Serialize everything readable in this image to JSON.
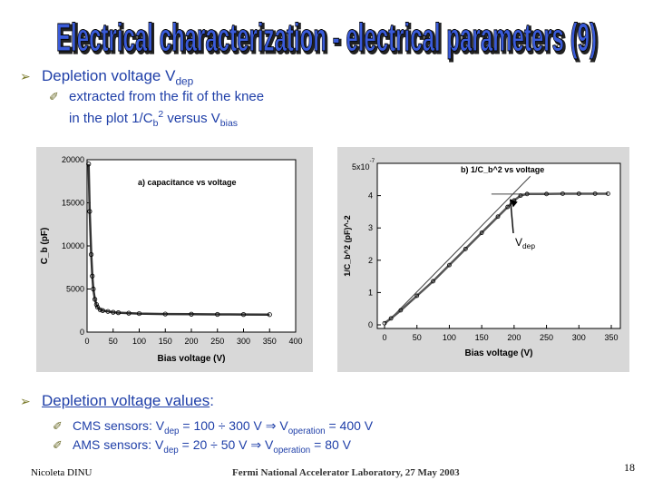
{
  "slide": {
    "title": "Electrical characterization - electrical parameters (9)",
    "bullet1": {
      "text": "Depletion voltage V",
      "sub": "dep"
    },
    "sub1": {
      "line1": "extracted from the fit of the knee",
      "line2_a": "in the plot 1/C",
      "line2_b": "b",
      "line2_c": "2",
      "line2_d": " versus V",
      "line2_e": "bias"
    },
    "bullet2": {
      "text": "Depletion voltage values",
      "colon": ":"
    },
    "cms": {
      "a": "CMS sensors: V",
      "b": "dep",
      "c": " = 100 ÷ 300 V ",
      "arrow": "⇒",
      "d": " V",
      "e": "operation",
      "f": " = 400 V"
    },
    "ams": {
      "a": "AMS sensors: V",
      "b": "dep",
      "c": " = 20 ÷ 50 V ",
      "arrow": "⇒",
      "d": " V",
      "e": "operation",
      "f": " = 80 V"
    },
    "footer": {
      "author": "Nicoleta DINU",
      "venue": "Fermi National Accelerator Laboratory, 27 May 2003",
      "page": "18"
    },
    "colors": {
      "title_fill": "#3a5bd9",
      "title_shadow": "#222222",
      "text_blue": "#1f3fa8"
    }
  },
  "chart_data": [
    {
      "type": "scatter",
      "title": "a) capacitance vs voltage",
      "xlabel": "Bias voltage (V)",
      "ylabel": "C_b (pF)",
      "xlim": [
        0,
        400
      ],
      "ylim": [
        0,
        20000
      ],
      "xticks": [
        "0",
        "50",
        "100",
        "150",
        "200",
        "250",
        "300",
        "350",
        "400"
      ],
      "yticks": [
        "0",
        "5000",
        "10000",
        "15000",
        "20000"
      ],
      "x": [
        3,
        5,
        8,
        10,
        12,
        15,
        18,
        20,
        25,
        30,
        40,
        50,
        60,
        80,
        100,
        150,
        200,
        250,
        300,
        350
      ],
      "y": [
        19500,
        14000,
        9000,
        6500,
        5000,
        3800,
        3200,
        2900,
        2600,
        2500,
        2400,
        2300,
        2250,
        2200,
        2150,
        2100,
        2080,
        2050,
        2040,
        2030
      ]
    },
    {
      "type": "scatter",
      "title": "b) 1/C_b^2 vs voltage",
      "xlabel": "Bias voltage (V)",
      "ylabel": "1/C_b^2 (pF)^-2",
      "scale_label": "5x10",
      "scale_exp": "-7",
      "annotation": "V_dep",
      "xlim": [
        0,
        350
      ],
      "ylim": [
        0,
        5
      ],
      "xticks": [
        "0",
        "50",
        "100",
        "150",
        "200",
        "250",
        "300",
        "350"
      ],
      "yticks": [
        "0",
        "1",
        "2",
        "3",
        "4"
      ],
      "x": [
        0,
        10,
        25,
        50,
        75,
        100,
        125,
        150,
        175,
        190,
        200,
        210,
        220,
        250,
        275,
        300,
        325,
        345
      ],
      "y": [
        0.05,
        0.2,
        0.45,
        0.9,
        1.35,
        1.85,
        2.35,
        2.85,
        3.35,
        3.65,
        3.85,
        4.0,
        4.05,
        4.05,
        4.06,
        4.06,
        4.06,
        4.06
      ],
      "fit_flat_y": 4.05
    }
  ]
}
